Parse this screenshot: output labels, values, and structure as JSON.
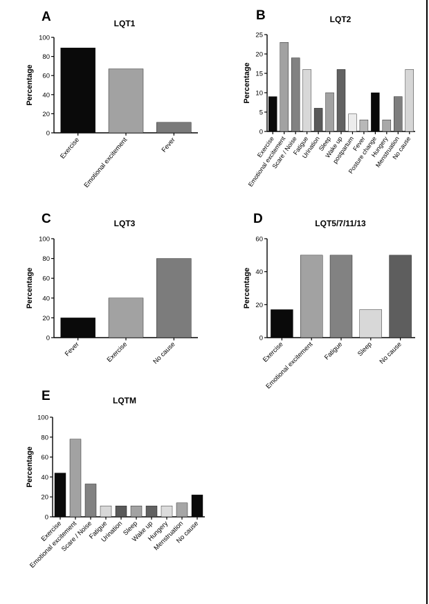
{
  "figure": {
    "panels": [
      "A",
      "B",
      "C",
      "D",
      "E"
    ]
  },
  "chart_data": [
    {
      "type": "bar",
      "title": "LQT1",
      "ylabel": "Percentage",
      "ylim": [
        0,
        100
      ],
      "yticks": [
        0,
        20,
        40,
        60,
        80,
        100
      ],
      "categories": [
        "Exercise",
        "Emotional excitement",
        "Fever"
      ],
      "values": [
        89,
        67,
        11
      ],
      "colors": [
        "#0a0a0a",
        "#a2a2a2",
        "#7a7a7a"
      ]
    },
    {
      "type": "bar",
      "title": "LQT2",
      "ylabel": "Percentage",
      "ylim": [
        0,
        25
      ],
      "yticks": [
        0,
        5,
        10,
        15,
        20,
        25
      ],
      "categories": [
        "Exercise",
        "Emotional excitement",
        "Scare / Noise",
        "Fatigue",
        "Urination",
        "Sleep",
        "Wake up",
        "postpartum",
        "Fever",
        "Posture change",
        "Hungery",
        "Menstruation",
        "No cause"
      ],
      "values": [
        9,
        23,
        19,
        16,
        6,
        10,
        16,
        4.5,
        3,
        10,
        3,
        9,
        16
      ],
      "colors": [
        "#0a0a0a",
        "#a2a2a2",
        "#828282",
        "#d8d8d8",
        "#5a5a5a",
        "#a2a2a2",
        "#626262",
        "#ececec",
        "#b8b8b8",
        "#0a0a0a",
        "#a8a8a8",
        "#7e7e7e",
        "#d6d6d6"
      ]
    },
    {
      "type": "bar",
      "title": "LQT3",
      "ylabel": "Percentage",
      "ylim": [
        0,
        100
      ],
      "yticks": [
        0,
        20,
        40,
        60,
        80,
        100
      ],
      "categories": [
        "Fever",
        "Exercise",
        "No cause"
      ],
      "values": [
        20,
        40,
        80
      ],
      "colors": [
        "#0a0a0a",
        "#a2a2a2",
        "#7c7c7c"
      ]
    },
    {
      "type": "bar",
      "title": "LQT5/7/11/13",
      "ylabel": "Percentage",
      "ylim": [
        0,
        60
      ],
      "yticks": [
        0,
        20,
        40,
        60
      ],
      "categories": [
        "Exercise",
        "Emotional excitement",
        "Fatigue",
        "Sleep",
        "No cause"
      ],
      "values": [
        17,
        50,
        50,
        17,
        50
      ],
      "colors": [
        "#0a0a0a",
        "#a2a2a2",
        "#828282",
        "#d8d8d8",
        "#5e5e5e"
      ]
    },
    {
      "type": "bar",
      "title": "LQTM",
      "ylabel": "Percentage",
      "ylim": [
        0,
        100
      ],
      "yticks": [
        0,
        20,
        40,
        60,
        80,
        100
      ],
      "categories": [
        "Exercise",
        "Emotional excitement",
        "Scare / Noise",
        "Fatigue",
        "Urination",
        "Sleep",
        "Wake up",
        "Hungery",
        "Menstruation",
        "No cause"
      ],
      "values": [
        44,
        78,
        33,
        11,
        11,
        11,
        11,
        11,
        14,
        22
      ],
      "colors": [
        "#0a0a0a",
        "#a2a2a2",
        "#828282",
        "#d8d8d8",
        "#5a5a5a",
        "#a2a2a2",
        "#626262",
        "#dcdcdc",
        "#a6a6a6",
        "#0a0a0a"
      ]
    }
  ]
}
